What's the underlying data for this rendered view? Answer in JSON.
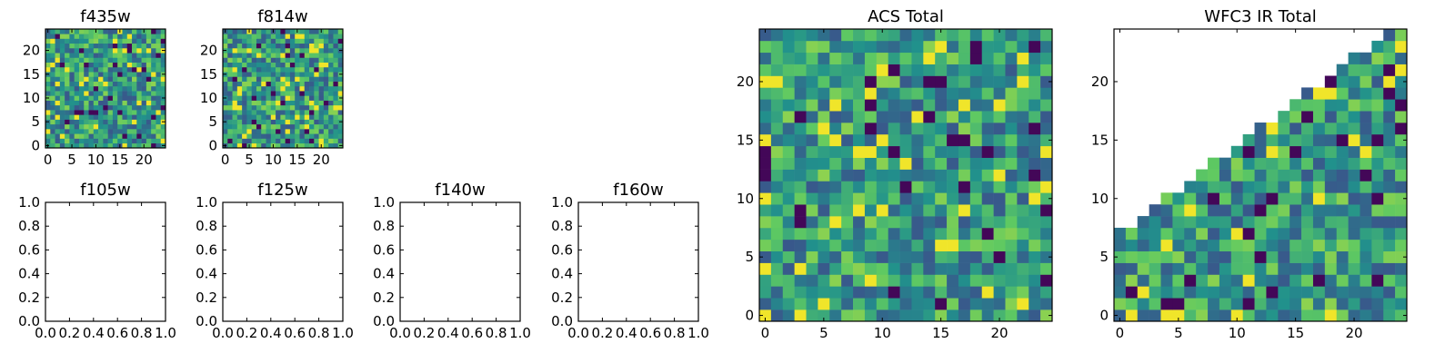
{
  "colors": {
    "background": "#ffffff",
    "axis": "#000000",
    "colormap": [
      "#440154",
      "#3b528b",
      "#21918c",
      "#5ec962",
      "#fde725"
    ]
  },
  "chart_data": [
    {
      "id": "f435w",
      "type": "heatmap",
      "title": "f435w",
      "xlabel": "",
      "ylabel": "",
      "xlim": [
        -0.5,
        24.5
      ],
      "ylim": [
        -0.5,
        24.5
      ],
      "xticks": [
        0,
        5,
        10,
        15,
        20
      ],
      "yticks": [
        0,
        5,
        10,
        15,
        20
      ],
      "grid": false,
      "colormap": "viridis",
      "value_range": [
        0,
        1
      ],
      "shape": [
        25,
        25
      ],
      "cell_values_note": "25x25 noisy cells; dark outliers visible",
      "seed": 11
    },
    {
      "id": "f814w",
      "type": "heatmap",
      "title": "f814w",
      "xlabel": "",
      "ylabel": "",
      "xlim": [
        -0.5,
        24.5
      ],
      "ylim": [
        -0.5,
        24.5
      ],
      "xticks": [
        0,
        5,
        10,
        15,
        20
      ],
      "yticks": [
        0,
        5,
        10,
        15,
        20
      ],
      "grid": false,
      "colormap": "viridis",
      "value_range": [
        0,
        1
      ],
      "shape": [
        25,
        25
      ],
      "seed": 23
    },
    {
      "id": "f105w",
      "type": "scatter",
      "title": "f105w",
      "xlabel": "",
      "ylabel": "",
      "xlim": [
        0.0,
        1.0
      ],
      "ylim": [
        0.0,
        1.0
      ],
      "xticks": [
        "0.0",
        "0.2",
        "0.4",
        "0.6",
        "0.8",
        "1.0"
      ],
      "yticks": [
        "0.0",
        "0.2",
        "0.4",
        "0.6",
        "0.8",
        "1.0"
      ],
      "grid": false,
      "series": []
    },
    {
      "id": "f125w",
      "type": "scatter",
      "title": "f125w",
      "xlabel": "",
      "ylabel": "",
      "xlim": [
        0.0,
        1.0
      ],
      "ylim": [
        0.0,
        1.0
      ],
      "xticks": [
        "0.0",
        "0.2",
        "0.4",
        "0.6",
        "0.8",
        "1.0"
      ],
      "yticks": [
        "0.0",
        "0.2",
        "0.4",
        "0.6",
        "0.8",
        "1.0"
      ],
      "grid": false,
      "series": []
    },
    {
      "id": "f140w",
      "type": "scatter",
      "title": "f140w",
      "xlabel": "",
      "ylabel": "",
      "xlim": [
        0.0,
        1.0
      ],
      "ylim": [
        0.0,
        1.0
      ],
      "xticks": [
        "0.0",
        "0.2",
        "0.4",
        "0.6",
        "0.8",
        "1.0"
      ],
      "yticks": [
        "0.0",
        "0.2",
        "0.4",
        "0.6",
        "0.8",
        "1.0"
      ],
      "grid": false,
      "series": []
    },
    {
      "id": "f160w",
      "type": "scatter",
      "title": "f160w",
      "xlabel": "",
      "ylabel": "",
      "xlim": [
        0.0,
        1.0
      ],
      "ylim": [
        0.0,
        1.0
      ],
      "xticks": [
        "0.0",
        "0.2",
        "0.4",
        "0.6",
        "0.8",
        "1.0"
      ],
      "yticks": [
        "0.0",
        "0.2",
        "0.4",
        "0.6",
        "0.8",
        "1.0"
      ],
      "grid": false,
      "series": []
    },
    {
      "id": "acs-total",
      "type": "heatmap",
      "title": "ACS Total",
      "xlabel": "",
      "ylabel": "",
      "xlim": [
        -0.5,
        24.5
      ],
      "ylim": [
        -0.5,
        24.5
      ],
      "xticks": [
        0,
        5,
        10,
        15,
        20
      ],
      "yticks": [
        0,
        5,
        10,
        15,
        20
      ],
      "grid": false,
      "colormap": "viridis",
      "value_range": [
        0,
        1
      ],
      "shape": [
        25,
        25
      ],
      "seed": 37
    },
    {
      "id": "wfc3-ir-total",
      "type": "heatmap",
      "title": "WFC3 IR Total",
      "xlabel": "",
      "ylabel": "",
      "xlim": [
        -0.5,
        24.5
      ],
      "ylim": [
        -0.5,
        24.5
      ],
      "xticks": [
        0,
        5,
        10,
        15,
        20
      ],
      "yticks": [
        0,
        5,
        10,
        15,
        20
      ],
      "grid": false,
      "colormap": "viridis",
      "value_range": [
        0,
        1
      ],
      "shape": [
        25,
        25
      ],
      "seed": 53,
      "mask": "upper-left triangle is empty (no data), boundary rises from about (0, 7) to (24, 25)"
    }
  ]
}
